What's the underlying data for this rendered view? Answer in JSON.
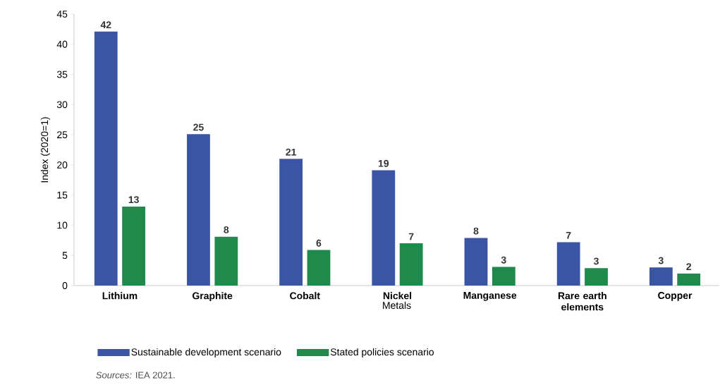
{
  "chart_data": {
    "type": "bar",
    "categories": [
      "Lithium",
      "Graphite",
      "Cobalt",
      "Nickel",
      "Manganese",
      "Rare earth elements",
      "Copper"
    ],
    "xlabel": "Metals",
    "ylabel": "Index (2020=1)",
    "ylim": [
      0,
      45
    ],
    "yticks": [
      0,
      5,
      10,
      15,
      20,
      25,
      30,
      35,
      40,
      45
    ],
    "legend": "bottom",
    "series": [
      {
        "name": "Sustainable development scenario",
        "color": "#3a55a4",
        "values": [
          42.1,
          25.1,
          21,
          19.1,
          7.9,
          7.2,
          3
        ],
        "value_labels": [
          "42",
          "25",
          "21",
          "19",
          "8",
          "7",
          "3"
        ]
      },
      {
        "name": "Stated policies scenario",
        "color": "#1f8a4c",
        "values": [
          13.1,
          8.1,
          5.9,
          7,
          3.1,
          2.9,
          2
        ],
        "value_labels": [
          "13",
          "8",
          "6",
          "7",
          "3",
          "3",
          "2"
        ]
      }
    ],
    "annotations": [
      "*Sources:* IEA 2021."
    ]
  }
}
